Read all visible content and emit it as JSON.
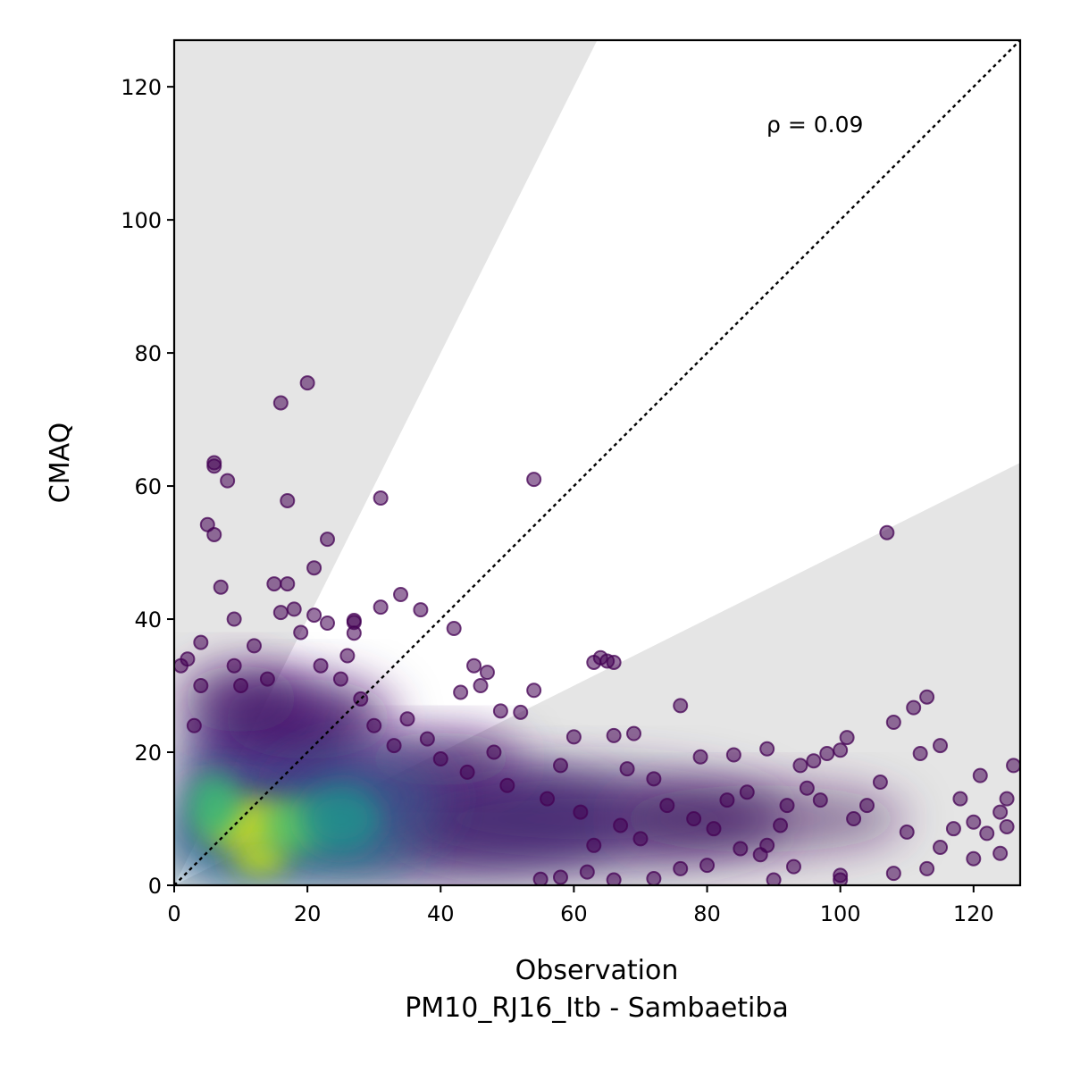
{
  "chart_data": {
    "type": "scatter",
    "xlabel": "Observation",
    "subtitle": "PM10_RJ16_Itb - Sambaetiba",
    "ylabel": "CMAQ",
    "annotation": "ρ = 0.09",
    "xlim": [
      0,
      127
    ],
    "ylim": [
      0,
      127
    ],
    "xticks": [
      0,
      20,
      40,
      60,
      80,
      100,
      120
    ],
    "yticks": [
      0,
      20,
      40,
      60,
      80,
      100,
      120
    ],
    "identity_line": true,
    "shaded_band": {
      "upper_slope": 2.0,
      "lower_slope": 0.5,
      "color": "#e5e5e5"
    },
    "colormap": "viridis",
    "density_core": [
      {
        "x": 11,
        "y": 9,
        "rx": 6,
        "ry": 4,
        "color": "#dfe318"
      },
      {
        "x": 13,
        "y": 4,
        "rx": 4,
        "ry": 2.5,
        "color": "#c8e020"
      },
      {
        "x": 18,
        "y": 9,
        "rx": 5,
        "ry": 4,
        "color": "#5ec962"
      },
      {
        "x": 6,
        "y": 12,
        "rx": 4,
        "ry": 5,
        "color": "#3bbb75"
      },
      {
        "x": 25,
        "y": 10,
        "rx": 6,
        "ry": 5,
        "color": "#21918c"
      }
    ],
    "outliers": [
      [
        20,
        75.5
      ],
      [
        16,
        72.5
      ],
      [
        6,
        63.5
      ],
      [
        6,
        63
      ],
      [
        8,
        60.8
      ],
      [
        17,
        57.8
      ],
      [
        5,
        54.2
      ],
      [
        6,
        52.7
      ],
      [
        23,
        52
      ],
      [
        21,
        47.7
      ],
      [
        7,
        44.8
      ],
      [
        15,
        45.3
      ],
      [
        17,
        45.3
      ],
      [
        31,
        58.2
      ],
      [
        54,
        61
      ],
      [
        107,
        53
      ],
      [
        27,
        39.8
      ],
      [
        27,
        39.5
      ],
      [
        27,
        37.9
      ],
      [
        31,
        41.8
      ],
      [
        34,
        43.7
      ],
      [
        37,
        41.4
      ],
      [
        42,
        38.6
      ],
      [
        9,
        40
      ],
      [
        16,
        41
      ],
      [
        18,
        41.5
      ],
      [
        21,
        40.6
      ],
      [
        23,
        39.4
      ],
      [
        19,
        38
      ],
      [
        63,
        33.5
      ],
      [
        64,
        34.2
      ],
      [
        65,
        33.7
      ],
      [
        66,
        33.5
      ],
      [
        54,
        29.3
      ],
      [
        52,
        26
      ],
      [
        49,
        26.2
      ],
      [
        45,
        33
      ],
      [
        47,
        32
      ],
      [
        46,
        30
      ],
      [
        43,
        29
      ],
      [
        76,
        27
      ],
      [
        108,
        24.5
      ],
      [
        111,
        26.7
      ],
      [
        113,
        28.3
      ],
      [
        115,
        21
      ],
      [
        112,
        19.8
      ],
      [
        101,
        22.2
      ],
      [
        100,
        20.3
      ],
      [
        98,
        19.8
      ],
      [
        96,
        18.7
      ],
      [
        94,
        18
      ],
      [
        89,
        20.5
      ],
      [
        84,
        19.6
      ],
      [
        79,
        19.3
      ],
      [
        69,
        22.8
      ],
      [
        66,
        22.5
      ],
      [
        60,
        22.3
      ],
      [
        126,
        18
      ],
      [
        121,
        16.5
      ],
      [
        118,
        13
      ],
      [
        125,
        13
      ],
      [
        124,
        11
      ],
      [
        120,
        9.5
      ],
      [
        117,
        8.5
      ],
      [
        125,
        8.8
      ],
      [
        122,
        7.8
      ],
      [
        124,
        4.8
      ],
      [
        120,
        4
      ],
      [
        115,
        5.7
      ],
      [
        113,
        2.5
      ],
      [
        108,
        1.8
      ],
      [
        100,
        1.5
      ],
      [
        100,
        0.8
      ],
      [
        90,
        0.8
      ],
      [
        93,
        2.8
      ],
      [
        88,
        4.6
      ],
      [
        85,
        5.5
      ],
      [
        80,
        3
      ],
      [
        76,
        2.5
      ],
      [
        72,
        1
      ],
      [
        66,
        0.8
      ],
      [
        62,
        2
      ],
      [
        58,
        1.2
      ],
      [
        55,
        0.9
      ],
      [
        110,
        8
      ],
      [
        106,
        15.5
      ],
      [
        104,
        12
      ],
      [
        102,
        10
      ],
      [
        97,
        12.8
      ],
      [
        95,
        14.6
      ],
      [
        92,
        12
      ],
      [
        91,
        9
      ],
      [
        89,
        6
      ],
      [
        86,
        14
      ],
      [
        83,
        12.8
      ],
      [
        81,
        8.5
      ],
      [
        78,
        10
      ],
      [
        74,
        12
      ],
      [
        72,
        16
      ],
      [
        70,
        7
      ],
      [
        68,
        17.5
      ],
      [
        28,
        28
      ],
      [
        30,
        24
      ],
      [
        33,
        21
      ],
      [
        35,
        25
      ],
      [
        38,
        22
      ],
      [
        40,
        19
      ],
      [
        44,
        17
      ],
      [
        48,
        20
      ],
      [
        50,
        15
      ],
      [
        56,
        13
      ],
      [
        58,
        18
      ],
      [
        61,
        11
      ],
      [
        63,
        6
      ],
      [
        67,
        9
      ],
      [
        12,
        36
      ],
      [
        9,
        33
      ],
      [
        4,
        30
      ],
      [
        2,
        34
      ],
      [
        10,
        30
      ],
      [
        14,
        31
      ],
      [
        22,
        33
      ],
      [
        25,
        31
      ],
      [
        26,
        34.5
      ],
      [
        4,
        36.5
      ],
      [
        1,
        33
      ],
      [
        3,
        24
      ]
    ]
  }
}
